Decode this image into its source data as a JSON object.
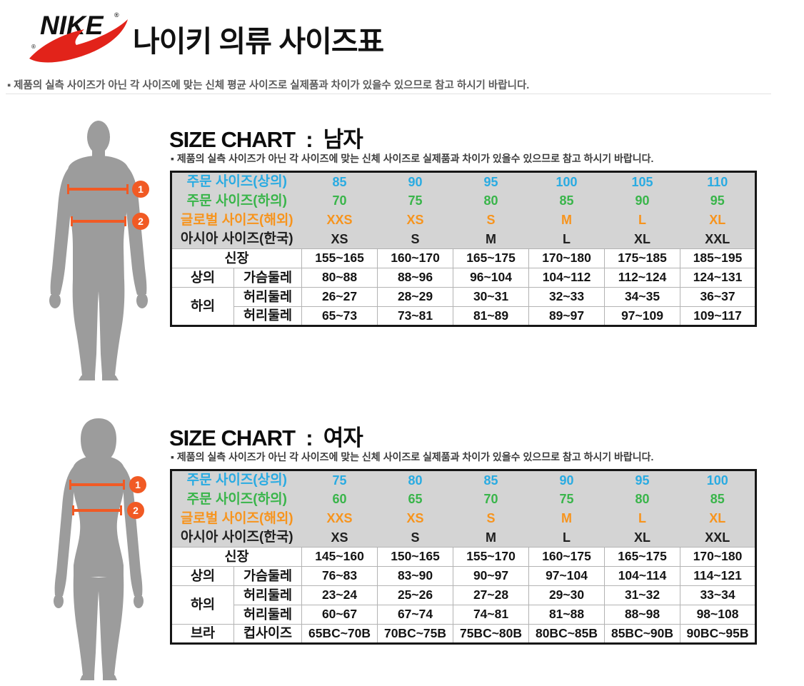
{
  "header": {
    "logo_text": "NIKE",
    "logo_registered": "®",
    "title": "나이키 의류 사이즈표",
    "disclaimer": "▪ 제품의 실측 사이즈가 아닌 각 사이즈에 맞는 신체 평균 사이즈로 실제품과 차이가 있을수 있으므로 참고 하시기 바랍니다."
  },
  "colors": {
    "blue": "#29abe2",
    "green": "#39b54a",
    "orange": "#f7941d",
    "black": "#1f1f1f",
    "accent_orange": "#f15a24",
    "silhouette_gray": "#9c9c9c",
    "table_header_bg": "#d4d4d4",
    "swoosh_red": "#e2231a"
  },
  "sections": [
    {
      "id": "men",
      "heading": "SIZE CHART  :  남자",
      "disclaimer": "▪ 제품의 실측 사이즈가 아닌 각 사이즈에 맞는 신체 사이즈로 실제품과 차이가 있을수 있으므로 참고 하시기 바랍니다.",
      "figure_markers": [
        "1",
        "2"
      ],
      "table": {
        "header_rows": [
          {
            "label": "주문 사이즈(상의)",
            "color": "blue",
            "values": [
              "85",
              "90",
              "95",
              "100",
              "105",
              "110"
            ]
          },
          {
            "label": "주문 사이즈(하의)",
            "color": "green",
            "values": [
              "70",
              "75",
              "80",
              "85",
              "90",
              "95"
            ]
          },
          {
            "label": "글로벌 사이즈(해외)",
            "color": "orange",
            "values": [
              "XXS",
              "XS",
              "S",
              "M",
              "L",
              "XL"
            ]
          },
          {
            "label": "아시아 사이즈(한국)",
            "color": "black",
            "values": [
              "XS",
              "S",
              "M",
              "L",
              "XL",
              "XXL"
            ]
          }
        ],
        "body_rows": [
          {
            "labels": [
              {
                "text": "신장",
                "colspan": 2
              }
            ],
            "values": [
              "155~165",
              "160~170",
              "165~175",
              "170~180",
              "175~185",
              "185~195"
            ]
          },
          {
            "labels": [
              {
                "text": "상의"
              },
              {
                "text": "가슴둘레"
              }
            ],
            "values": [
              "80~88",
              "88~96",
              "96~104",
              "104~112",
              "112~124",
              "124~131"
            ]
          },
          {
            "labels": [
              {
                "text": "하의",
                "rowspan": 2
              },
              {
                "text": "허리둘레"
              }
            ],
            "values": [
              "26~27",
              "28~29",
              "30~31",
              "32~33",
              "34~35",
              "36~37"
            ]
          },
          {
            "labels": [
              {
                "text": "허리둘레"
              }
            ],
            "values": [
              "65~73",
              "73~81",
              "81~89",
              "89~97",
              "97~109",
              "109~117"
            ]
          }
        ]
      }
    },
    {
      "id": "women",
      "heading": "SIZE CHART  :  여자",
      "disclaimer": "▪ 제품의 실측 사이즈가 아닌 각 사이즈에 맞는 신체 사이즈로 실제품과 차이가 있을수 있으므로 참고 하시기 바랍니다.",
      "figure_markers": [
        "1",
        "2"
      ],
      "table": {
        "header_rows": [
          {
            "label": "주문 사이즈(상의)",
            "color": "blue",
            "values": [
              "75",
              "80",
              "85",
              "90",
              "95",
              "100"
            ]
          },
          {
            "label": "주문 사이즈(하의)",
            "color": "green",
            "values": [
              "60",
              "65",
              "70",
              "75",
              "80",
              "85"
            ]
          },
          {
            "label": "글로벌 사이즈(해외)",
            "color": "orange",
            "values": [
              "XXS",
              "XS",
              "S",
              "M",
              "L",
              "XL"
            ]
          },
          {
            "label": "아시아 사이즈(한국)",
            "color": "black",
            "values": [
              "XS",
              "S",
              "M",
              "L",
              "XL",
              "XXL"
            ]
          }
        ],
        "body_rows": [
          {
            "labels": [
              {
                "text": "신장",
                "colspan": 2
              }
            ],
            "values": [
              "145~160",
              "150~165",
              "155~170",
              "160~175",
              "165~175",
              "170~180"
            ]
          },
          {
            "labels": [
              {
                "text": "상의"
              },
              {
                "text": "가슴둘레"
              }
            ],
            "values": [
              "76~83",
              "83~90",
              "90~97",
              "97~104",
              "104~114",
              "114~121"
            ]
          },
          {
            "labels": [
              {
                "text": "하의",
                "rowspan": 2
              },
              {
                "text": "허리둘레"
              }
            ],
            "values": [
              "23~24",
              "25~26",
              "27~28",
              "29~30",
              "31~32",
              "33~34"
            ]
          },
          {
            "labels": [
              {
                "text": "허리둘레"
              }
            ],
            "values": [
              "60~67",
              "67~74",
              "74~81",
              "81~88",
              "88~98",
              "98~108"
            ]
          },
          {
            "labels": [
              {
                "text": "브라"
              },
              {
                "text": "컵사이즈"
              }
            ],
            "values": [
              "65BC~70B",
              "70BC~75B",
              "75BC~80B",
              "80BC~85B",
              "85BC~90B",
              "90BC~95B"
            ]
          }
        ]
      }
    }
  ]
}
